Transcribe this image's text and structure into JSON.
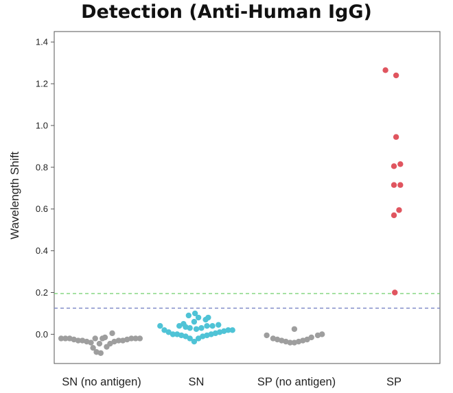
{
  "chart_data": {
    "type": "scatter",
    "title": "Detection (Anti-Human IgG)",
    "xlabel": "",
    "ylabel": "Wavelength Shift",
    "categories": [
      "SN (no antigen)",
      "SN",
      "SP (no antigen)",
      "SP"
    ],
    "ylim": [
      -0.14,
      1.45
    ],
    "yticks": [
      "0.0",
      "0.2",
      "0.4",
      "0.6",
      "0.8",
      "1.0",
      "1.2",
      "1.4"
    ],
    "reference_lines": [
      {
        "y": 0.195,
        "color": "#6fcf6a",
        "style": "dashed"
      },
      {
        "y": 0.125,
        "color": "#7b86c6",
        "style": "dashed"
      }
    ],
    "grid": false,
    "series": [
      {
        "category": "SN (no antigen)",
        "color": "#9e9e9e",
        "points": [
          {
            "offset": -0.95,
            "y": -0.02
          },
          {
            "offset": -0.85,
            "y": -0.02
          },
          {
            "offset": -0.75,
            "y": -0.02
          },
          {
            "offset": -0.65,
            "y": -0.025
          },
          {
            "offset": -0.55,
            "y": -0.03
          },
          {
            "offset": -0.45,
            "y": -0.03
          },
          {
            "offset": -0.35,
            "y": -0.035
          },
          {
            "offset": -0.25,
            "y": -0.04
          },
          {
            "offset": -0.2,
            "y": -0.065
          },
          {
            "offset": -0.12,
            "y": -0.085
          },
          {
            "offset": -0.02,
            "y": -0.09
          },
          {
            "offset": -0.05,
            "y": -0.045
          },
          {
            "offset": 0.02,
            "y": -0.02
          },
          {
            "offset": -0.15,
            "y": -0.02
          },
          {
            "offset": 0.08,
            "y": -0.015
          },
          {
            "offset": 0.12,
            "y": -0.06
          },
          {
            "offset": 0.2,
            "y": -0.045
          },
          {
            "offset": 0.25,
            "y": 0.005
          },
          {
            "offset": 0.3,
            "y": -0.035
          },
          {
            "offset": 0.4,
            "y": -0.03
          },
          {
            "offset": 0.5,
            "y": -0.03
          },
          {
            "offset": 0.6,
            "y": -0.025
          },
          {
            "offset": 0.7,
            "y": -0.02
          },
          {
            "offset": 0.8,
            "y": -0.02
          },
          {
            "offset": 0.9,
            "y": -0.02
          }
        ]
      },
      {
        "category": "SN",
        "color": "#4fc3d6",
        "points": [
          {
            "offset": -0.85,
            "y": 0.04
          },
          {
            "offset": -0.75,
            "y": 0.02
          },
          {
            "offset": -0.65,
            "y": 0.01
          },
          {
            "offset": -0.55,
            "y": 0.0
          },
          {
            "offset": -0.45,
            "y": 0.0
          },
          {
            "offset": -0.35,
            "y": -0.005
          },
          {
            "offset": -0.25,
            "y": -0.01
          },
          {
            "offset": -0.15,
            "y": -0.02
          },
          {
            "offset": -0.05,
            "y": -0.035
          },
          {
            "offset": 0.05,
            "y": -0.02
          },
          {
            "offset": 0.15,
            "y": -0.01
          },
          {
            "offset": 0.25,
            "y": -0.005
          },
          {
            "offset": 0.35,
            "y": 0.0
          },
          {
            "offset": 0.45,
            "y": 0.005
          },
          {
            "offset": 0.55,
            "y": 0.01
          },
          {
            "offset": 0.65,
            "y": 0.015
          },
          {
            "offset": 0.75,
            "y": 0.02
          },
          {
            "offset": 0.85,
            "y": 0.02
          },
          {
            "offset": -0.4,
            "y": 0.04
          },
          {
            "offset": -0.25,
            "y": 0.035
          },
          {
            "offset": -0.15,
            "y": 0.03
          },
          {
            "offset": 0.0,
            "y": 0.025
          },
          {
            "offset": 0.12,
            "y": 0.03
          },
          {
            "offset": 0.25,
            "y": 0.04
          },
          {
            "offset": 0.38,
            "y": 0.04
          },
          {
            "offset": 0.52,
            "y": 0.045
          },
          {
            "offset": -0.3,
            "y": 0.05
          },
          {
            "offset": -0.05,
            "y": 0.06
          },
          {
            "offset": 0.22,
            "y": 0.07
          },
          {
            "offset": -0.18,
            "y": 0.09
          },
          {
            "offset": 0.05,
            "y": 0.08
          },
          {
            "offset": 0.28,
            "y": 0.08
          },
          {
            "offset": -0.03,
            "y": 0.1
          }
        ]
      },
      {
        "category": "SP (no antigen)",
        "color": "#9e9e9e",
        "points": [
          {
            "offset": -0.7,
            "y": -0.005
          },
          {
            "offset": -0.55,
            "y": -0.02
          },
          {
            "offset": -0.45,
            "y": -0.025
          },
          {
            "offset": -0.35,
            "y": -0.03
          },
          {
            "offset": -0.25,
            "y": -0.035
          },
          {
            "offset": -0.15,
            "y": -0.04
          },
          {
            "offset": -0.05,
            "y": -0.04
          },
          {
            "offset": 0.05,
            "y": -0.035
          },
          {
            "offset": 0.15,
            "y": -0.03
          },
          {
            "offset": 0.25,
            "y": -0.025
          },
          {
            "offset": 0.35,
            "y": -0.015
          },
          {
            "offset": 0.5,
            "y": -0.005
          },
          {
            "offset": 0.6,
            "y": 0.0
          },
          {
            "offset": -0.05,
            "y": 0.025
          }
        ]
      },
      {
        "category": "SP",
        "color": "#e0555f",
        "points": [
          {
            "offset": -0.2,
            "y": 1.265
          },
          {
            "offset": 0.05,
            "y": 1.24
          },
          {
            "offset": 0.05,
            "y": 0.945
          },
          {
            "offset": 0.15,
            "y": 0.815
          },
          {
            "offset": 0.0,
            "y": 0.805
          },
          {
            "offset": 0.0,
            "y": 0.715
          },
          {
            "offset": 0.15,
            "y": 0.715
          },
          {
            "offset": 0.12,
            "y": 0.595
          },
          {
            "offset": 0.0,
            "y": 0.57
          },
          {
            "offset": 0.02,
            "y": 0.2
          }
        ]
      }
    ]
  }
}
